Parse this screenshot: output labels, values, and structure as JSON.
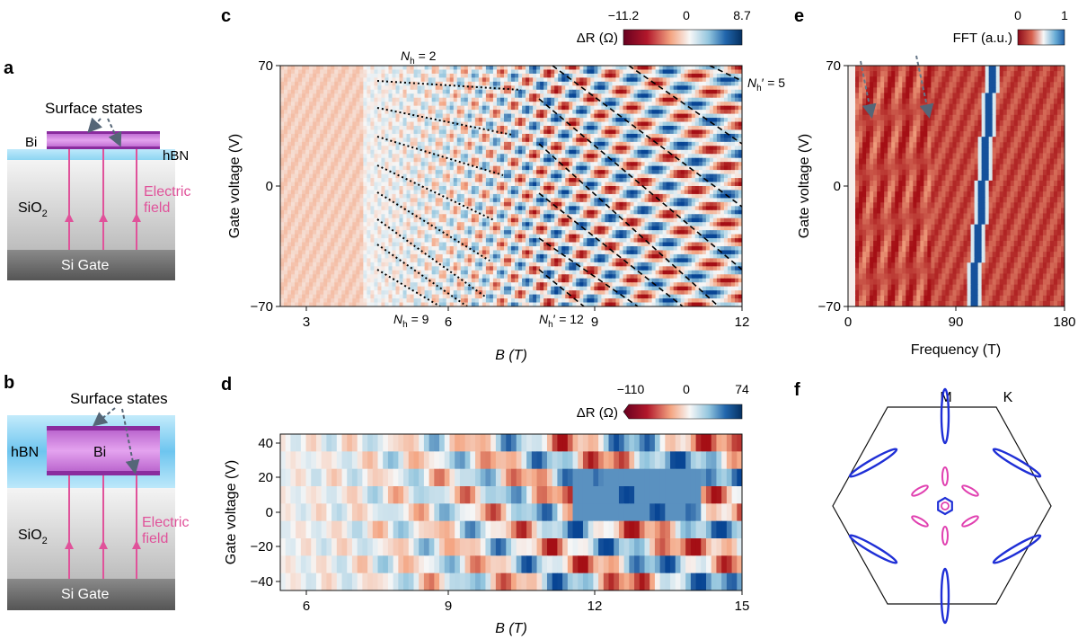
{
  "panel_a": {
    "letter": "a",
    "surface_states": "Surface states",
    "bi": "Bi",
    "hbn": "hBN",
    "sio2_base": "SiO",
    "sio2_sub": "2",
    "electric": "Electric",
    "field": "field",
    "gate": "Si Gate"
  },
  "panel_b": {
    "letter": "b",
    "surface_states": "Surface states",
    "hbn": "hBN",
    "bi": "Bi",
    "sio2_base": "SiO",
    "sio2_sub": "2",
    "electric": "Electric",
    "field": "field",
    "gate": "Si Gate"
  },
  "panel_c": {
    "letter": "c",
    "colorbar_label": "ΔR (Ω)",
    "colorbar_ticks": [
      "−11.2",
      "0",
      "8.7"
    ],
    "nh2": "N",
    "nh2_sub": "h",
    "nh2_val": " = 2",
    "nh9": "N",
    "nh9_sub": "h",
    "nh9_val": " = 9",
    "nhp5": "N",
    "nhp5_sub": "h",
    "nhp5_val": "′ = 5",
    "nhp12": "N",
    "nhp12_sub": "h",
    "nhp12_val": "′ = 12"
  },
  "panel_d": {
    "letter": "d",
    "colorbar_label": "ΔR (Ω)",
    "colorbar_ticks": [
      "−110",
      "0",
      "74"
    ]
  },
  "panel_e": {
    "letter": "e",
    "colorbar_label": "FFT (a.u.)",
    "colorbar_ticks": [
      "0",
      "1"
    ]
  },
  "panel_f": {
    "letter": "f",
    "m": "M",
    "k": "K"
  },
  "colors": {
    "red": "#b2182b",
    "blue": "#2166ac",
    "magenta": "#c23bb7",
    "pink": "#e0529a",
    "hbn": "#9fdcf3",
    "fermi_blue": "#1f2fd6",
    "fermi_pink": "#e040b0"
  },
  "chart_data": [
    {
      "id": "c",
      "type": "heatmap",
      "xlabel": "B (T)",
      "ylabel": "Gate voltage (V)",
      "xlim": [
        2.5,
        12
      ],
      "ylim": [
        -70,
        70
      ],
      "xticks": [
        "3",
        "6",
        "9",
        "12"
      ],
      "yticks": [
        "70",
        "0",
        "−70"
      ],
      "colorbar": {
        "min": -11.2,
        "max": 8.7,
        "label": "ΔR (Ω)"
      },
      "dotted_lines": "Nh = 2 … 9",
      "dashed_lines": "Nh′ = 5 … 12"
    },
    {
      "id": "d",
      "type": "heatmap",
      "xlabel": "B (T)",
      "ylabel": "Gate voltage (V)",
      "xlim": [
        5.5,
        15
      ],
      "ylim": [
        -45,
        45
      ],
      "xticks": [
        "6",
        "9",
        "12",
        "15"
      ],
      "yticks": [
        "40",
        "20",
        "0",
        "−20",
        "−40"
      ],
      "colorbar": {
        "min": -110,
        "max": 74,
        "label": "ΔR (Ω)"
      }
    },
    {
      "id": "e",
      "type": "heatmap",
      "xlabel": "Frequency (T)",
      "ylabel": "Gate voltage (V)",
      "xlim": [
        0,
        180
      ],
      "ylim": [
        -70,
        70
      ],
      "xticks": [
        "0",
        "90",
        "180"
      ],
      "yticks": [
        "70",
        "0",
        "−70"
      ],
      "colorbar": {
        "min": 0,
        "max": 1,
        "label": "FFT (a.u.)"
      }
    }
  ]
}
